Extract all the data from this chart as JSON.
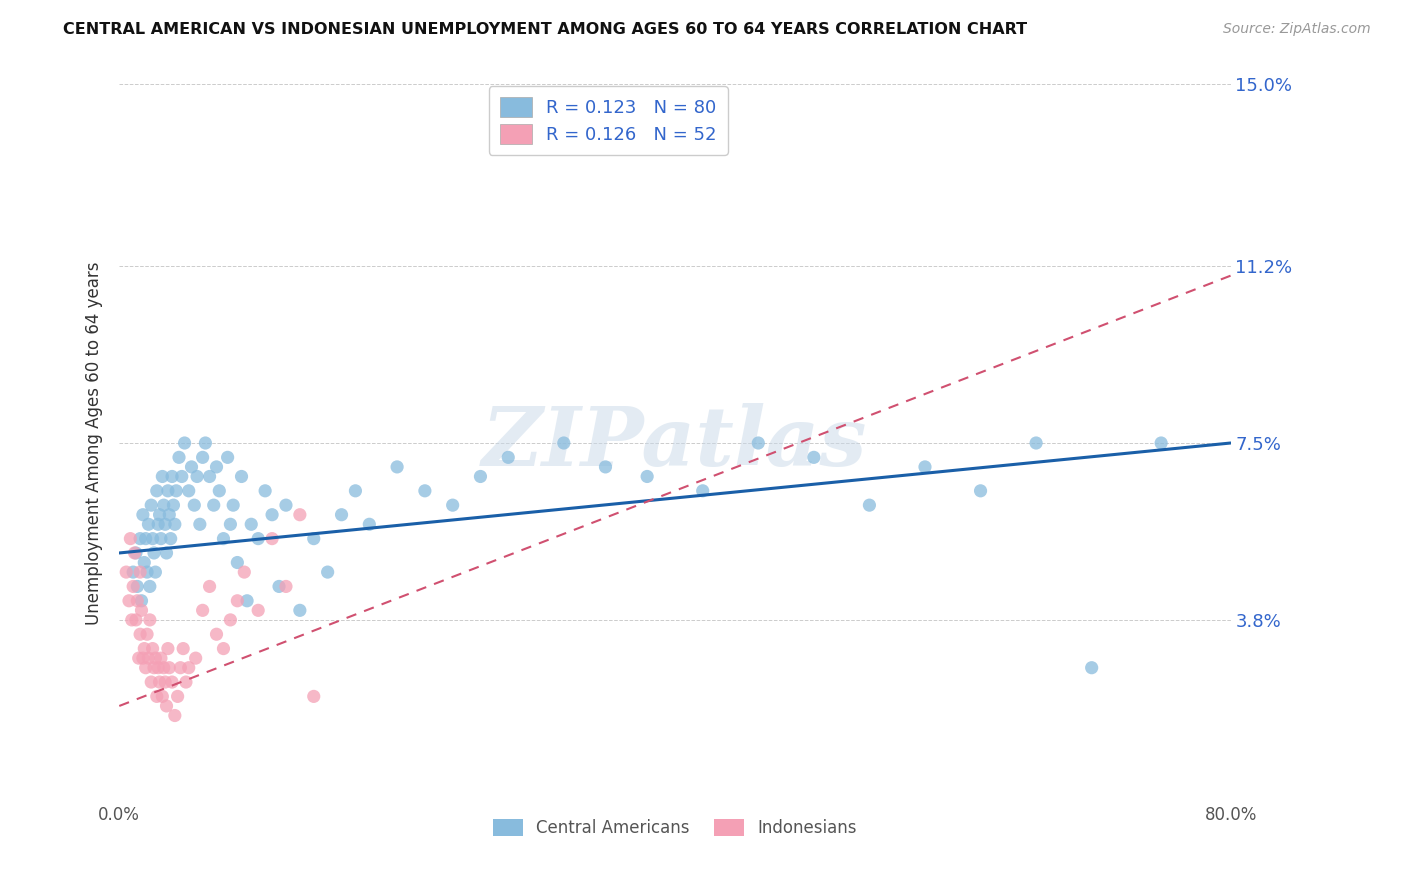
{
  "title": "CENTRAL AMERICAN VS INDONESIAN UNEMPLOYMENT AMONG AGES 60 TO 64 YEARS CORRELATION CHART",
  "source": "Source: ZipAtlas.com",
  "ylabel": "Unemployment Among Ages 60 to 64 years",
  "xlim": [
    0.0,
    0.8
  ],
  "ylim": [
    0.0,
    0.15
  ],
  "yticks": [
    0.0,
    0.038,
    0.075,
    0.112,
    0.15
  ],
  "ytick_labels": [
    "",
    "3.8%",
    "7.5%",
    "11.2%",
    "15.0%"
  ],
  "xticks": [
    0.0,
    0.8
  ],
  "xtick_labels": [
    "0.0%",
    "80.0%"
  ],
  "r_ca": 0.123,
  "n_ca": 80,
  "r_id": 0.126,
  "n_id": 52,
  "ca_color": "#88bbdd",
  "id_color": "#f4a0b5",
  "ca_line_color": "#1a5fa8",
  "id_line_color": "#d05070",
  "watermark": "ZIPatlas",
  "legend_label_ca": "Central Americans",
  "legend_label_id": "Indonesians",
  "ca_x": [
    0.01,
    0.012,
    0.013,
    0.015,
    0.016,
    0.017,
    0.018,
    0.019,
    0.02,
    0.021,
    0.022,
    0.023,
    0.024,
    0.025,
    0.026,
    0.027,
    0.028,
    0.029,
    0.03,
    0.031,
    0.032,
    0.033,
    0.034,
    0.035,
    0.036,
    0.037,
    0.038,
    0.039,
    0.04,
    0.041,
    0.043,
    0.045,
    0.047,
    0.05,
    0.052,
    0.054,
    0.056,
    0.058,
    0.06,
    0.062,
    0.065,
    0.068,
    0.07,
    0.072,
    0.075,
    0.078,
    0.08,
    0.082,
    0.085,
    0.088,
    0.092,
    0.095,
    0.1,
    0.105,
    0.11,
    0.115,
    0.12,
    0.13,
    0.14,
    0.15,
    0.16,
    0.17,
    0.18,
    0.2,
    0.22,
    0.24,
    0.26,
    0.28,
    0.32,
    0.35,
    0.38,
    0.42,
    0.46,
    0.5,
    0.54,
    0.58,
    0.62,
    0.66,
    0.7,
    0.75
  ],
  "ca_y": [
    0.048,
    0.052,
    0.045,
    0.055,
    0.042,
    0.06,
    0.05,
    0.055,
    0.048,
    0.058,
    0.045,
    0.062,
    0.055,
    0.052,
    0.048,
    0.065,
    0.058,
    0.06,
    0.055,
    0.068,
    0.062,
    0.058,
    0.052,
    0.065,
    0.06,
    0.055,
    0.068,
    0.062,
    0.058,
    0.065,
    0.072,
    0.068,
    0.075,
    0.065,
    0.07,
    0.062,
    0.068,
    0.058,
    0.072,
    0.075,
    0.068,
    0.062,
    0.07,
    0.065,
    0.055,
    0.072,
    0.058,
    0.062,
    0.05,
    0.068,
    0.042,
    0.058,
    0.055,
    0.065,
    0.06,
    0.045,
    0.062,
    0.04,
    0.055,
    0.048,
    0.06,
    0.065,
    0.058,
    0.07,
    0.065,
    0.062,
    0.068,
    0.072,
    0.075,
    0.07,
    0.068,
    0.065,
    0.075,
    0.072,
    0.062,
    0.07,
    0.065,
    0.075,
    0.028,
    0.075
  ],
  "id_x": [
    0.005,
    0.007,
    0.008,
    0.009,
    0.01,
    0.011,
    0.012,
    0.013,
    0.014,
    0.015,
    0.015,
    0.016,
    0.017,
    0.018,
    0.019,
    0.02,
    0.021,
    0.022,
    0.023,
    0.024,
    0.025,
    0.026,
    0.027,
    0.028,
    0.029,
    0.03,
    0.031,
    0.032,
    0.033,
    0.034,
    0.035,
    0.036,
    0.038,
    0.04,
    0.042,
    0.044,
    0.046,
    0.048,
    0.05,
    0.055,
    0.06,
    0.065,
    0.07,
    0.075,
    0.08,
    0.085,
    0.09,
    0.1,
    0.11,
    0.12,
    0.13,
    0.14
  ],
  "id_y": [
    0.048,
    0.042,
    0.055,
    0.038,
    0.045,
    0.052,
    0.038,
    0.042,
    0.03,
    0.048,
    0.035,
    0.04,
    0.03,
    0.032,
    0.028,
    0.035,
    0.03,
    0.038,
    0.025,
    0.032,
    0.028,
    0.03,
    0.022,
    0.028,
    0.025,
    0.03,
    0.022,
    0.028,
    0.025,
    0.02,
    0.032,
    0.028,
    0.025,
    0.018,
    0.022,
    0.028,
    0.032,
    0.025,
    0.028,
    0.03,
    0.04,
    0.045,
    0.035,
    0.032,
    0.038,
    0.042,
    0.048,
    0.04,
    0.055,
    0.045,
    0.06,
    0.022
  ],
  "ca_line_start_y": 0.052,
  "ca_line_end_y": 0.075,
  "id_line_start_y": 0.02,
  "id_line_end_y": 0.11
}
